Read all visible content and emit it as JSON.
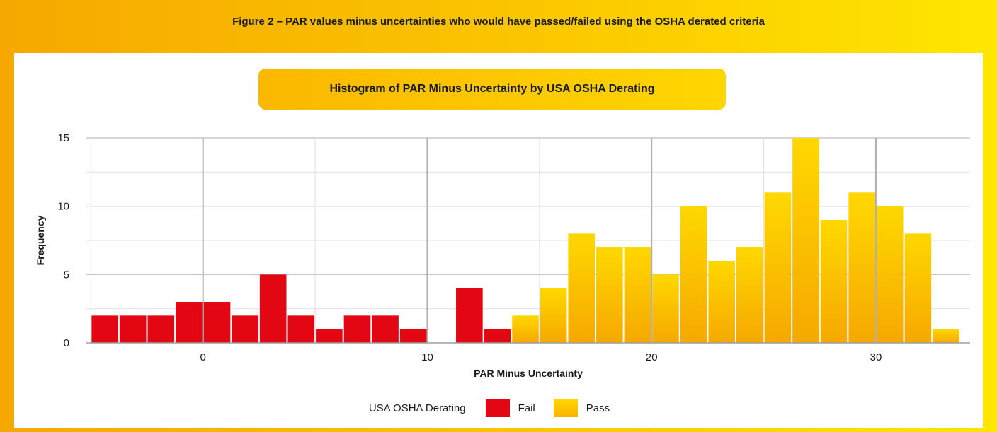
{
  "figure_caption": "Figure 2 – PAR values minus uncertainties who would have passed/failed using the OSHA derated criteria",
  "chart_data": {
    "type": "bar",
    "title": "Histogram of PAR Minus Uncertainty by USA OSHA Derating",
    "xlabel": "PAR Minus Uncertainty",
    "ylabel": "Frequency",
    "bin_width": 1.25,
    "xlim": [
      -5.2,
      34.2
    ],
    "ylim": [
      0,
      15
    ],
    "x_ticks": [
      0,
      10,
      20,
      30
    ],
    "y_ticks": [
      0,
      5,
      10,
      15
    ],
    "grid": true,
    "legend_title": "USA OSHA Derating",
    "legend_position": "bottom",
    "series": [
      {
        "name": "Fail",
        "color": "#e30613",
        "bins": [
          {
            "x": -4.375,
            "y": 2
          },
          {
            "x": -3.125,
            "y": 2
          },
          {
            "x": -1.875,
            "y": 2
          },
          {
            "x": -0.625,
            "y": 3
          },
          {
            "x": 0.625,
            "y": 3
          },
          {
            "x": 1.875,
            "y": 2
          },
          {
            "x": 3.125,
            "y": 5
          },
          {
            "x": 4.375,
            "y": 2
          },
          {
            "x": 5.625,
            "y": 1
          },
          {
            "x": 6.875,
            "y": 2
          },
          {
            "x": 8.125,
            "y": 2
          },
          {
            "x": 9.375,
            "y": 1
          },
          {
            "x": 11.875,
            "y": 4
          },
          {
            "x": 13.125,
            "y": 1
          }
        ]
      },
      {
        "name": "Pass",
        "color": "#f9b200",
        "bins": [
          {
            "x": 14.375,
            "y": 2
          },
          {
            "x": 15.625,
            "y": 4
          },
          {
            "x": 16.875,
            "y": 8
          },
          {
            "x": 18.125,
            "y": 7
          },
          {
            "x": 19.375,
            "y": 7
          },
          {
            "x": 20.625,
            "y": 5
          },
          {
            "x": 21.875,
            "y": 10
          },
          {
            "x": 23.125,
            "y": 6
          },
          {
            "x": 24.375,
            "y": 7
          },
          {
            "x": 25.625,
            "y": 11
          },
          {
            "x": 26.875,
            "y": 15
          },
          {
            "x": 28.125,
            "y": 9
          },
          {
            "x": 29.375,
            "y": 11
          },
          {
            "x": 30.625,
            "y": 10
          },
          {
            "x": 31.875,
            "y": 8
          },
          {
            "x": 33.125,
            "y": 1
          }
        ]
      }
    ]
  }
}
